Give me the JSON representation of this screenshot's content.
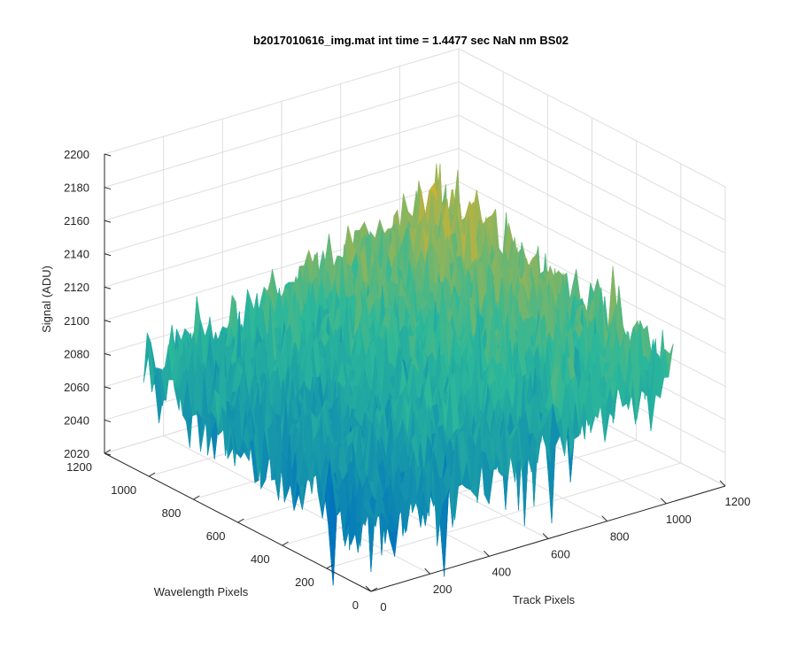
{
  "chart_data": {
    "type": "surface",
    "title": "b2017010616_img.mat int time = 1.4477 sec  NaN nm BS02",
    "xlabel": "Track Pixels",
    "ylabel": "Wavelength Pixels",
    "zlabel": "Signal (ADU)",
    "xlim": [
      0,
      1200
    ],
    "ylim": [
      0,
      1200
    ],
    "zlim": [
      2020,
      2200
    ],
    "x_ticks": [
      "0",
      "200",
      "400",
      "600",
      "800",
      "1000",
      "1200"
    ],
    "y_ticks": [
      "0",
      "200",
      "400",
      "600",
      "800",
      "1000",
      "1200"
    ],
    "z_ticks": [
      "2020",
      "2040",
      "2060",
      "2080",
      "2100",
      "2120",
      "2140",
      "2160",
      "2180",
      "2200"
    ],
    "grid": true,
    "colormap": "parula",
    "surface_extent": {
      "x": [
        0,
        1024
      ],
      "y": [
        0,
        1024
      ]
    },
    "signal_corners": {
      "x0_y0": 2060,
      "x0_y1024": 2080,
      "x1024_y0": 2100,
      "x1024_y1024": 2130
    },
    "noise_amplitude": 18,
    "colors": {
      "low": "#0072BD",
      "mid": "#2CB89A",
      "high": "#EDB120",
      "grid": "#dedede",
      "axis": "#262626"
    }
  }
}
